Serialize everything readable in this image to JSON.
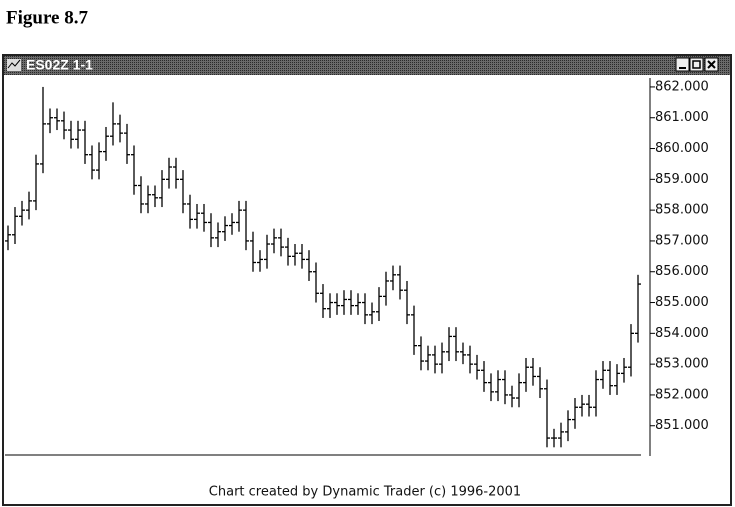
{
  "chart_data": {
    "type": "ohlc",
    "figure_label": "Figure 8.7",
    "title": "ES02Z 1-1",
    "footer": "Chart created by Dynamic Trader (c) 1996-2001",
    "color": "#000000",
    "ylim": [
      850.05,
      862.29
    ],
    "yticks": [
      {
        "value": 851,
        "label": "851.000"
      },
      {
        "value": 852,
        "label": "852.000"
      },
      {
        "value": 853,
        "label": "853.000"
      },
      {
        "value": 854,
        "label": "854.000"
      },
      {
        "value": 855,
        "label": "855.000"
      },
      {
        "value": 856,
        "label": "856.000"
      },
      {
        "value": 857,
        "label": "857.000"
      },
      {
        "value": 858,
        "label": "858.000"
      },
      {
        "value": 859,
        "label": "859.000"
      },
      {
        "value": 860,
        "label": "860.000"
      },
      {
        "value": 861,
        "label": "861.000"
      },
      {
        "value": 862,
        "label": "862.000"
      }
    ],
    "open": [
      857.0,
      857.2,
      857.8,
      858.0,
      858.3,
      859.5,
      860.8,
      861.0,
      860.9,
      860.6,
      860.3,
      860.6,
      859.8,
      859.3,
      859.9,
      860.4,
      860.8,
      860.5,
      859.8,
      858.8,
      858.2,
      858.5,
      858.4,
      859.0,
      859.4,
      859.0,
      858.2,
      857.7,
      857.9,
      857.6,
      857.1,
      857.3,
      857.5,
      857.6,
      858.0,
      857.0,
      856.3,
      856.4,
      856.9,
      857.1,
      856.8,
      856.5,
      856.6,
      856.4,
      856.0,
      855.3,
      854.8,
      855.0,
      854.9,
      855.1,
      854.9,
      855.0,
      854.6,
      854.7,
      855.2,
      855.7,
      855.9,
      855.4,
      854.6,
      853.6,
      853.1,
      853.3,
      853.0,
      853.4,
      853.9,
      853.4,
      853.3,
      853.0,
      852.8,
      852.4,
      852.1,
      852.5,
      852.0,
      851.9,
      852.4,
      852.9,
      852.6,
      852.2,
      850.6,
      850.6,
      850.8,
      851.2,
      851.6,
      851.7,
      851.6,
      852.5,
      852.8,
      852.3,
      852.7,
      852.9,
      854.0
    ],
    "high": [
      857.5,
      858.1,
      858.3,
      858.6,
      859.8,
      862.0,
      861.3,
      861.3,
      861.2,
      860.9,
      860.9,
      860.9,
      860.1,
      860.2,
      860.7,
      861.5,
      861.1,
      860.8,
      860.1,
      859.1,
      858.8,
      858.8,
      859.3,
      859.7,
      859.7,
      859.3,
      858.5,
      858.2,
      858.2,
      857.9,
      857.6,
      857.8,
      857.9,
      858.3,
      858.3,
      857.3,
      856.7,
      857.2,
      857.4,
      857.4,
      857.1,
      856.9,
      856.9,
      856.7,
      856.3,
      855.6,
      855.3,
      855.3,
      855.4,
      855.4,
      855.3,
      855.3,
      855.0,
      855.5,
      856.0,
      856.2,
      856.2,
      855.7,
      854.9,
      853.9,
      853.6,
      853.6,
      853.7,
      854.2,
      854.2,
      853.7,
      853.6,
      853.3,
      853.1,
      852.7,
      852.8,
      852.8,
      852.3,
      852.7,
      853.2,
      853.2,
      852.9,
      852.5,
      850.9,
      851.1,
      851.5,
      851.9,
      852.0,
      852.0,
      852.8,
      853.1,
      853.1,
      853.0,
      853.2,
      854.3,
      855.9
    ],
    "low": [
      856.7,
      856.9,
      857.5,
      857.7,
      858.0,
      859.2,
      860.5,
      860.6,
      860.3,
      860.0,
      860.0,
      859.5,
      859.0,
      859.0,
      859.6,
      860.1,
      860.2,
      859.5,
      858.5,
      857.9,
      857.9,
      858.1,
      858.1,
      858.7,
      858.7,
      857.9,
      857.4,
      857.4,
      857.3,
      856.8,
      856.8,
      857.0,
      857.2,
      857.3,
      856.7,
      856.0,
      856.0,
      856.1,
      856.6,
      856.5,
      856.2,
      856.2,
      856.1,
      855.7,
      855.0,
      854.5,
      854.5,
      854.6,
      854.6,
      854.6,
      854.6,
      854.3,
      854.3,
      854.4,
      854.9,
      855.4,
      855.1,
      854.3,
      853.3,
      852.8,
      852.8,
      852.7,
      852.7,
      853.1,
      853.1,
      853.0,
      852.7,
      852.5,
      852.1,
      851.8,
      851.8,
      851.7,
      851.6,
      851.6,
      852.1,
      852.3,
      851.9,
      850.3,
      850.3,
      850.3,
      850.5,
      850.9,
      851.3,
      851.3,
      851.3,
      852.2,
      852.0,
      852.0,
      852.4,
      852.6,
      853.7
    ],
    "close": [
      857.2,
      857.8,
      858.0,
      858.3,
      859.5,
      860.8,
      861.0,
      860.9,
      860.6,
      860.3,
      860.6,
      859.8,
      859.3,
      859.9,
      860.4,
      860.8,
      860.5,
      859.8,
      858.8,
      858.2,
      858.5,
      858.4,
      859.0,
      859.4,
      859.0,
      858.2,
      857.7,
      857.9,
      857.6,
      857.1,
      857.3,
      857.5,
      857.6,
      858.0,
      857.0,
      856.3,
      856.4,
      856.9,
      857.1,
      856.8,
      856.5,
      856.6,
      856.4,
      856.0,
      855.3,
      854.8,
      855.0,
      854.9,
      855.1,
      854.9,
      855.0,
      854.6,
      854.7,
      855.2,
      855.7,
      855.9,
      855.4,
      854.6,
      853.6,
      853.1,
      853.3,
      853.0,
      853.4,
      853.9,
      853.4,
      853.3,
      853.0,
      852.8,
      852.4,
      852.1,
      852.5,
      852.0,
      851.9,
      852.4,
      852.9,
      852.6,
      852.2,
      850.6,
      850.6,
      850.8,
      851.2,
      851.6,
      851.7,
      851.6,
      852.5,
      852.8,
      852.3,
      852.7,
      852.9,
      854.0,
      855.6
    ]
  }
}
